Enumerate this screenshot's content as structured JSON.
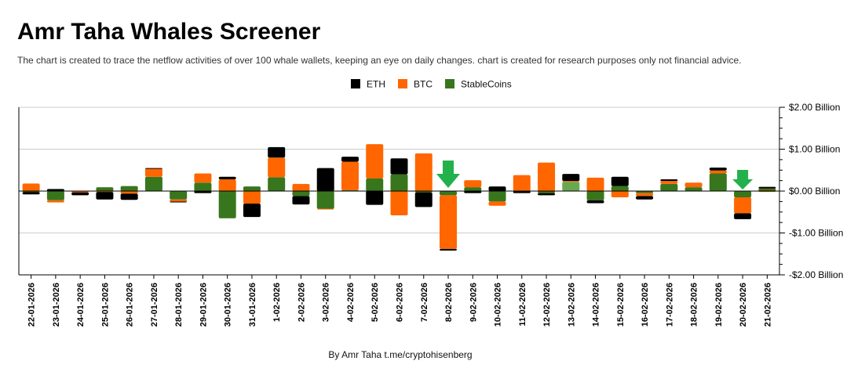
{
  "page": {
    "title": "Amr Taha Whales Screener",
    "subtitle": "The chart is created to trace the netflow activities of over 100 whale wallets, keeping an eye on daily changes.  chart is created for research purposes only not financial advice.",
    "footer": "By Amr Taha  t.me/cryptohisenberg"
  },
  "colors": {
    "ETH": "#000000",
    "BTC": "#ff6600",
    "StableCoins": "#38761d",
    "StableCoinsLight": "#6aa84f",
    "arrow": "#22b14c",
    "grid": "#cccccc",
    "axis": "#000000"
  },
  "chart_data": {
    "type": "bar",
    "stacked": true,
    "title": "",
    "xlabel": "",
    "ylabel": "",
    "ylim": [
      -2,
      2
    ],
    "y_unit": "Billion",
    "yticks": [
      {
        "value": 2,
        "label": "$2.00 Billion"
      },
      {
        "value": 1,
        "label": "$1.00 Billion"
      },
      {
        "value": 0,
        "label": "$0.00 Billion"
      },
      {
        "value": -1,
        "label": "-$1.00 Billion"
      },
      {
        "value": -2,
        "label": "-$2.00 Billion"
      }
    ],
    "legend": [
      "ETH",
      "BTC",
      "StableCoins"
    ],
    "legend_position": "top-center",
    "categories": [
      "22-01-2026",
      "23-01-2026",
      "24-01-2026",
      "25-01-2026",
      "26-01-2026",
      "27-01-2026",
      "28-01-2026",
      "29-01-2026",
      "30-01-2026",
      "31-01-2026",
      "1-02-2026",
      "2-02-2026",
      "3-02-2026",
      "4-02-2026",
      "5-02-2026",
      "6-02-2026",
      "7-02-2026",
      "8-02-2026",
      "9-02-2026",
      "10-02-2026",
      "11-02-2026",
      "12-02-2026",
      "13-02-2026",
      "14-02-2026",
      "15-02-2026",
      "16-02-2026",
      "17-02-2026",
      "18-02-2026",
      "19-02-2026",
      "20-02-2026",
      "21-02-2026"
    ],
    "series": [
      {
        "name": "StableCoins",
        "values": [
          -0.02,
          -0.22,
          -0.01,
          0.09,
          0.12,
          0.34,
          -0.2,
          0.2,
          -0.65,
          0.11,
          0.33,
          -0.12,
          -0.42,
          0.02,
          0.3,
          0.4,
          -0.03,
          -0.1,
          0.09,
          -0.25,
          0.0,
          -0.05,
          0.22,
          -0.22,
          0.12,
          -0.05,
          0.17,
          0.09,
          0.42,
          -0.15,
          0.06
        ]
      },
      {
        "name": "BTC",
        "values": [
          0.18,
          -0.05,
          -0.02,
          -0.02,
          -0.06,
          0.2,
          -0.05,
          0.22,
          0.28,
          -0.3,
          0.47,
          0.17,
          -0.02,
          0.68,
          0.82,
          -0.58,
          0.9,
          -1.28,
          0.17,
          -0.1,
          0.38,
          0.68,
          0.02,
          0.32,
          -0.15,
          -0.07,
          0.07,
          0.11,
          0.07,
          -0.38,
          -0.02
        ]
      },
      {
        "name": "ETH",
        "values": [
          -0.06,
          0.05,
          -0.07,
          -0.18,
          -0.15,
          0.01,
          -0.02,
          -0.05,
          0.06,
          -0.32,
          0.25,
          -0.2,
          0.55,
          0.12,
          -0.33,
          0.38,
          -0.35,
          -0.04,
          -0.05,
          0.11,
          -0.05,
          -0.05,
          0.17,
          -0.07,
          0.22,
          -0.08,
          0.04,
          0.0,
          0.07,
          -0.14,
          0.04
        ]
      }
    ],
    "light_stable_categories": [
      "13-02-2026"
    ],
    "annotations": [
      {
        "type": "down-arrow",
        "category": "8-02-2026"
      },
      {
        "type": "down-arrow",
        "category": "20-02-2026"
      }
    ]
  }
}
